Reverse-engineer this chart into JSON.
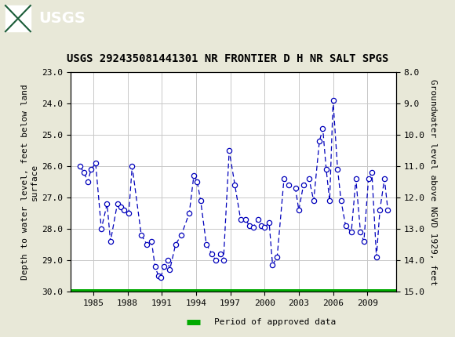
{
  "title": "USGS 292435081441301 NR FRONTIER D H NR SALT SPGS",
  "ylabel_left": "Depth to water level, feet below land\nsurface",
  "ylabel_right": "Groundwater level above NGVD 1929, feet",
  "ylim_left": [
    23.0,
    30.0
  ],
  "ylim_right": [
    8.0,
    15.0
  ],
  "xlim": [
    1983.0,
    2011.5
  ],
  "xticks": [
    1985,
    1988,
    1991,
    1994,
    1997,
    2000,
    2003,
    2006,
    2009
  ],
  "yticks_left": [
    23.0,
    24.0,
    25.0,
    26.0,
    27.0,
    28.0,
    29.0,
    30.0
  ],
  "yticks_right": [
    8.0,
    9.0,
    10.0,
    11.0,
    12.0,
    13.0,
    14.0,
    15.0
  ],
  "data_x": [
    1983.8,
    1984.2,
    1984.5,
    1984.8,
    1985.2,
    1985.7,
    1986.2,
    1986.5,
    1987.1,
    1987.4,
    1987.7,
    1988.1,
    1988.4,
    1989.2,
    1989.7,
    1990.1,
    1990.4,
    1990.7,
    1990.9,
    1991.2,
    1991.5,
    1991.7,
    1992.2,
    1992.7,
    1993.4,
    1993.8,
    1994.1,
    1994.4,
    1994.9,
    1995.4,
    1995.7,
    1996.1,
    1996.4,
    1996.9,
    1997.4,
    1997.9,
    1998.3,
    1998.7,
    1999.0,
    1999.4,
    1999.7,
    2000.0,
    2000.4,
    2000.7,
    2001.1,
    2001.7,
    2002.1,
    2002.7,
    2003.0,
    2003.4,
    2003.9,
    2004.3,
    2004.8,
    2005.1,
    2005.4,
    2005.7,
    2006.0,
    2006.4,
    2006.7,
    2007.1,
    2007.6,
    2008.0,
    2008.4,
    2008.7,
    2009.1,
    2009.4,
    2009.8,
    2010.1,
    2010.5,
    2010.8
  ],
  "data_y": [
    26.0,
    26.2,
    26.5,
    26.1,
    25.9,
    28.0,
    27.2,
    28.4,
    27.2,
    27.3,
    27.4,
    27.5,
    26.0,
    28.2,
    28.5,
    28.4,
    29.2,
    29.5,
    29.55,
    29.2,
    29.0,
    29.3,
    28.5,
    28.2,
    27.5,
    26.3,
    26.5,
    27.1,
    28.5,
    28.8,
    29.0,
    28.8,
    29.0,
    25.5,
    26.6,
    27.7,
    27.7,
    27.9,
    27.95,
    27.7,
    27.9,
    27.95,
    27.8,
    29.15,
    28.9,
    26.4,
    26.6,
    26.7,
    27.4,
    26.6,
    26.4,
    27.1,
    25.2,
    24.8,
    26.1,
    27.1,
    23.9,
    26.1,
    27.1,
    27.9,
    28.1,
    26.4,
    28.1,
    28.4,
    26.4,
    26.2,
    28.9,
    27.4,
    26.4,
    27.4
  ],
  "line_color": "#0000BB",
  "marker_color": "#0000BB",
  "marker_face": "#ffffff",
  "green_bar_color": "#00AA00",
  "header_bg": "#1a5c38",
  "background_color": "#e8e8d8",
  "plot_background": "#ffffff",
  "grid_color": "#c8c8c8",
  "font_name": "DejaVu Sans Mono",
  "title_fontsize": 10,
  "axis_label_fontsize": 8,
  "tick_fontsize": 8,
  "legend_text": "Period of approved data"
}
